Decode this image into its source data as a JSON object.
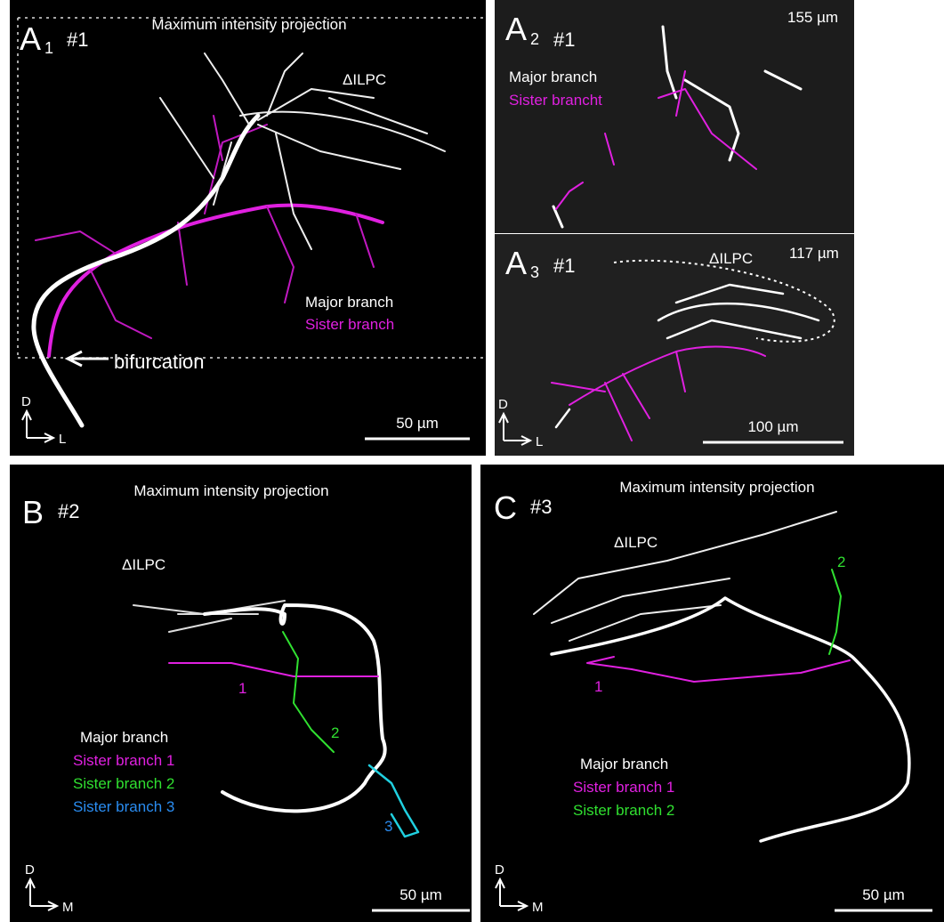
{
  "panels": [
    {
      "letter": "A",
      "subscript": "1",
      "animal": "#1",
      "title": "Maximum intensity projection",
      "region": "ΔILPC",
      "legend": [
        {
          "text": "Major branch",
          "color": "#ffffff"
        },
        {
          "text": "Sister branch",
          "color": "#e020e0"
        }
      ],
      "annotation": "bifurcation",
      "axes": [
        "D",
        "L"
      ],
      "scale_bar": "50 µm"
    },
    {
      "letter": "A",
      "subscript": "2",
      "animal": "#1",
      "depth": "155 µm",
      "legend": [
        {
          "text": "Major branch",
          "color": "#ffffff"
        },
        {
          "text": "Sister brancht",
          "color": "#e020e0"
        }
      ]
    },
    {
      "letter": "A",
      "subscript": "3",
      "animal": "#1",
      "depth": "117 µm",
      "region": "ΔILPC",
      "axes": [
        "D",
        "L"
      ],
      "scale_bar": "100 µm"
    },
    {
      "letter": "B",
      "animal": "#2",
      "title": "Maximum intensity projection",
      "region": "ΔILPC",
      "legend": [
        {
          "text": "Major branch",
          "color": "#ffffff"
        },
        {
          "text": "Sister branch 1",
          "color": "#e020e0"
        },
        {
          "text": "Sister branch 2",
          "color": "#30e030"
        },
        {
          "text": "Sister branch 3",
          "color": "#2a8cf0"
        }
      ],
      "branch_labels": [
        {
          "text": "1",
          "color": "#e020e0"
        },
        {
          "text": "2",
          "color": "#30e030"
        },
        {
          "text": "3",
          "color": "#2a8cf0"
        }
      ],
      "axes": [
        "D",
        "M"
      ],
      "scale_bar": "50 µm"
    },
    {
      "letter": "C",
      "animal": "#3",
      "title": "Maximum intensity projection",
      "region": "ΔILPC",
      "legend": [
        {
          "text": "Major branch",
          "color": "#ffffff"
        },
        {
          "text": "Sister branch 1",
          "color": "#e020e0"
        },
        {
          "text": "Sister branch 2",
          "color": "#30e030"
        }
      ],
      "branch_labels": [
        {
          "text": "1",
          "color": "#e020e0"
        },
        {
          "text": "2",
          "color": "#30e030"
        }
      ],
      "axes": [
        "D",
        "M"
      ],
      "scale_bar": "50 µm"
    }
  ]
}
